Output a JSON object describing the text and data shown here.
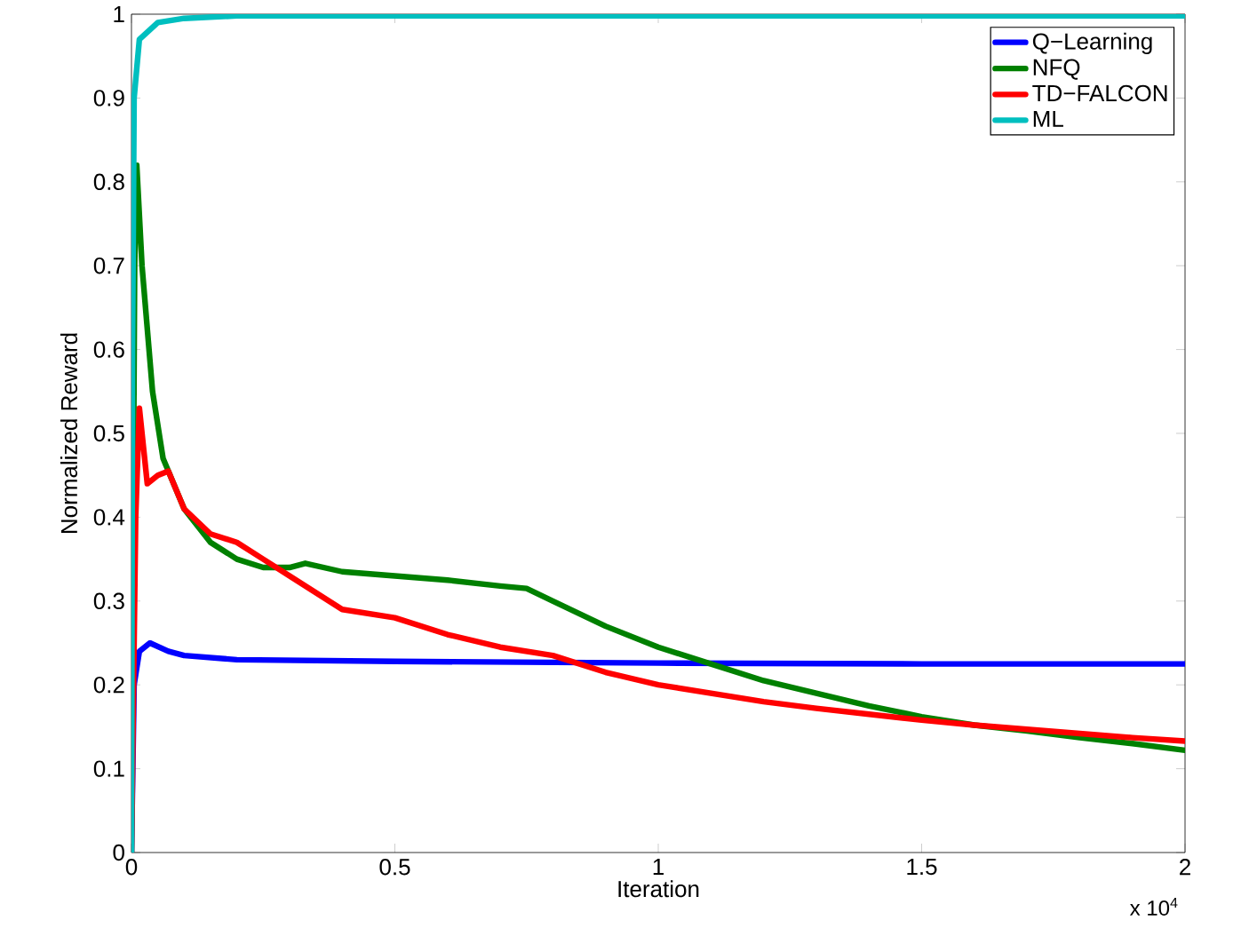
{
  "chart_data": {
    "type": "line",
    "xlabel": "Iteration",
    "ylabel": "Normalized Reward",
    "annotations": [
      "x 10$^{4}$"
    ],
    "xlim": [
      0,
      2
    ],
    "ylim": [
      0,
      1
    ],
    "xticks": [
      0,
      0.5,
      1,
      1.5,
      2
    ],
    "yticks": [
      0,
      0.1,
      0.2,
      0.3,
      0.4,
      0.5,
      0.6,
      0.7,
      0.8,
      0.9,
      1
    ],
    "legend": "top right",
    "line_style": "solid",
    "series": [
      {
        "name": "Q−Learning",
        "color": "#0000ff",
        "x": [
          0,
          0.005,
          0.015,
          0.035,
          0.07,
          0.1,
          0.2,
          0.5,
          1,
          1.5,
          2
        ],
        "values": [
          0,
          0.2,
          0.24,
          0.25,
          0.24,
          0.235,
          0.23,
          0.228,
          0.226,
          0.225,
          0.225
        ]
      },
      {
        "name": "NFQ",
        "color": "#008000",
        "x": [
          0,
          0.006,
          0.01,
          0.02,
          0.04,
          0.06,
          0.1,
          0.15,
          0.2,
          0.25,
          0.3,
          0.33,
          0.4,
          0.5,
          0.6,
          0.7,
          0.75,
          0.8,
          0.9,
          1,
          1.1,
          1.2,
          1.3,
          1.4,
          1.5,
          1.6,
          1.7,
          1.8,
          1.9,
          2
        ],
        "values": [
          0,
          0.7,
          0.82,
          0.7,
          0.55,
          0.47,
          0.41,
          0.37,
          0.35,
          0.34,
          0.34,
          0.345,
          0.335,
          0.33,
          0.325,
          0.318,
          0.315,
          0.3,
          0.27,
          0.245,
          0.225,
          0.205,
          0.19,
          0.175,
          0.162,
          0.152,
          0.145,
          0.137,
          0.13,
          0.122
        ]
      },
      {
        "name": "TD−FALCON",
        "color": "#ff0000",
        "x": [
          0,
          0.008,
          0.015,
          0.03,
          0.05,
          0.07,
          0.1,
          0.15,
          0.2,
          0.25,
          0.3,
          0.35,
          0.4,
          0.5,
          0.6,
          0.7,
          0.8,
          0.9,
          1,
          1.1,
          1.2,
          1.3,
          1.4,
          1.5,
          1.6,
          1.7,
          1.8,
          1.9,
          2
        ],
        "values": [
          0,
          0.4,
          0.53,
          0.44,
          0.45,
          0.455,
          0.41,
          0.38,
          0.37,
          0.35,
          0.33,
          0.31,
          0.29,
          0.28,
          0.26,
          0.245,
          0.235,
          0.215,
          0.2,
          0.19,
          0.18,
          0.172,
          0.165,
          0.158,
          0.152,
          0.147,
          0.142,
          0.137,
          0.133
        ]
      },
      {
        "name": "ML",
        "color": "#00bfbf",
        "x": [
          0,
          0.002,
          0.005,
          0.015,
          0.05,
          0.1,
          0.2,
          0.5,
          1,
          1.5,
          2
        ],
        "values": [
          0,
          0.6,
          0.9,
          0.97,
          0.99,
          0.995,
          0.998,
          0.998,
          0.998,
          0.998,
          0.998
        ]
      }
    ]
  }
}
